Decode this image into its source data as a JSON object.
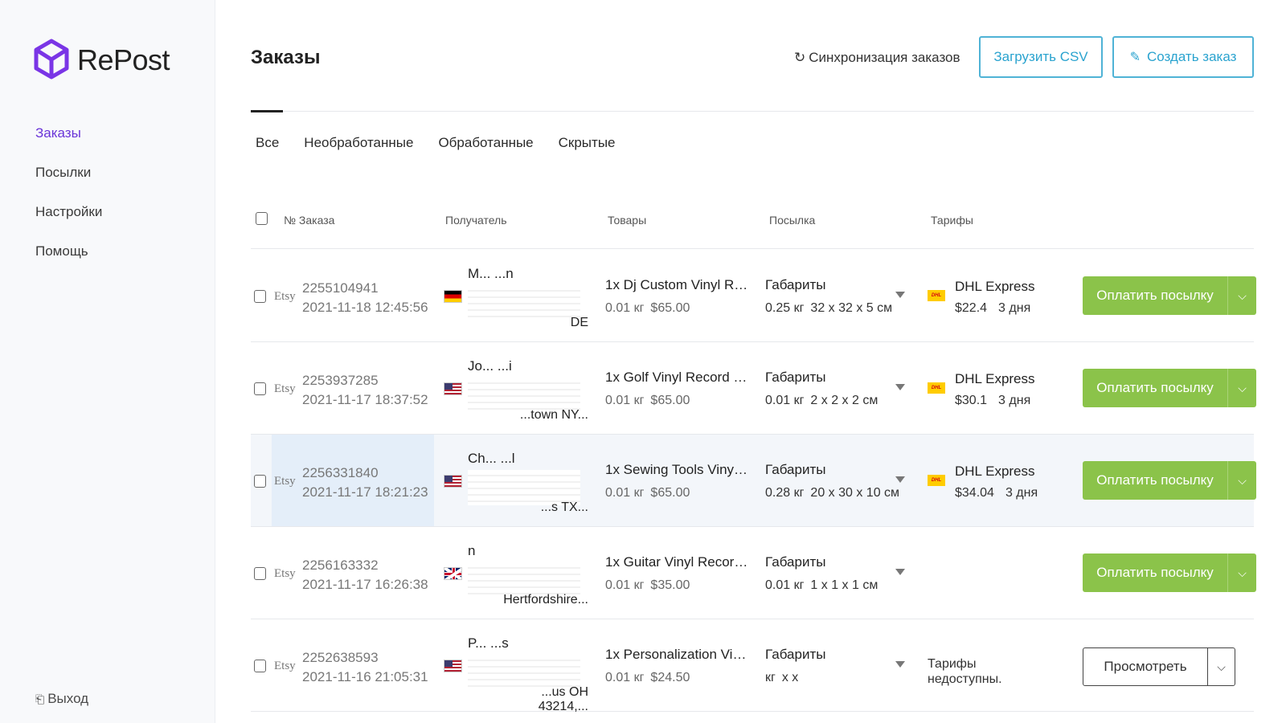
{
  "brand": {
    "name": "RePost",
    "accent": "#6a34d8"
  },
  "sidebar": {
    "items": [
      {
        "label": "Заказы",
        "active": true
      },
      {
        "label": "Посылки"
      },
      {
        "label": "Настройки"
      },
      {
        "label": "Помощь"
      }
    ],
    "logout": "Выход"
  },
  "header": {
    "title": "Заказы",
    "sync_label": "Синхронизация заказов",
    "upload_csv_label": "Загрузить CSV",
    "create_order_label": "Создать заказ"
  },
  "tabs": [
    "Все",
    "Необработанные",
    "Обработанные",
    "Скрытые"
  ],
  "table": {
    "columns": [
      "№ Заказа",
      "Получатель",
      "Товары",
      "Посылка",
      "Тарифы"
    ],
    "rows": [
      {
        "source": "Etsy",
        "id": "2255104941",
        "date": "2021-11-18 12:45:56",
        "flag": "de",
        "recipient": "M...  ...n",
        "address": "DE",
        "product": "1x Dj Custom Vinyl Rec...",
        "weight": "0.01 кг",
        "price": "$65.00",
        "pkg_label": "Габариты",
        "pkg_weight": "0.25 кг",
        "pkg_dims": "32 x 32 x 5 см",
        "tariff": "DHL Express",
        "tariff_price": "$22.4",
        "tariff_days": "3 дня",
        "action": "Оплатить посылку"
      },
      {
        "source": "Etsy",
        "id": "2253937285",
        "date": "2021-11-17 18:37:52",
        "flag": "us",
        "recipient": "Jo...  ...i",
        "address": "...town NY...",
        "product": "1x Golf Vinyl Record 12 ...",
        "weight": "0.01 кг",
        "price": "$65.00",
        "pkg_label": "Габариты",
        "pkg_weight": "0.01 кг",
        "pkg_dims": "2 x 2 x 2 см",
        "tariff": "DHL Express",
        "tariff_price": "$30.1",
        "tariff_days": "3 дня",
        "action": "Оплатить посылку"
      },
      {
        "source": "Etsy",
        "id": "2256331840",
        "date": "2021-11-17 18:21:23",
        "flag": "us",
        "recipient": "Ch...  ...l",
        "address": "...s TX...",
        "product": "1x Sewing Tools Vinyl R...",
        "weight": "0.01 кг",
        "price": "$65.00",
        "pkg_label": "Габариты",
        "pkg_weight": "0.28 кг",
        "pkg_dims": "20 x 30 x 10 см",
        "tariff": "DHL Express",
        "tariff_price": "$34.04",
        "tariff_days": "3 дня",
        "action": "Оплатить посылку"
      },
      {
        "source": "Etsy",
        "id": "2256163332",
        "date": "2021-11-17 16:26:38",
        "flag": "gb",
        "recipient": "n",
        "address": "Hertfordshire...",
        "product": "1x Guitar Vinyl Record 1...",
        "weight": "0.01 кг",
        "price": "$35.00",
        "pkg_label": "Габариты",
        "pkg_weight": "0.01 кг",
        "pkg_dims": "1 x 1 x 1 см",
        "action": "Оплатить посылку"
      },
      {
        "source": "Etsy",
        "id": "2252638593",
        "date": "2021-11-16 21:05:31",
        "flag": "us",
        "recipient": "P...  ...s",
        "address": "...us OH 43214,...",
        "product": "1x Personalization Vinyl...",
        "weight": "0.01 кг",
        "price": "$24.50",
        "pkg_label": "Габариты",
        "pkg_weight": "кг",
        "pkg_dims": "x x",
        "tariff_none": "Тарифы недоступны.",
        "action": "Просмотреть"
      }
    ]
  },
  "colors": {
    "pay_green": "#8bc34a",
    "outline_blue": "#2aa3cf"
  },
  "icons": {
    "sync": "refresh-icon",
    "create": "edit-icon",
    "logout": "exit-icon",
    "dropdown": "chevron-down-icon"
  }
}
